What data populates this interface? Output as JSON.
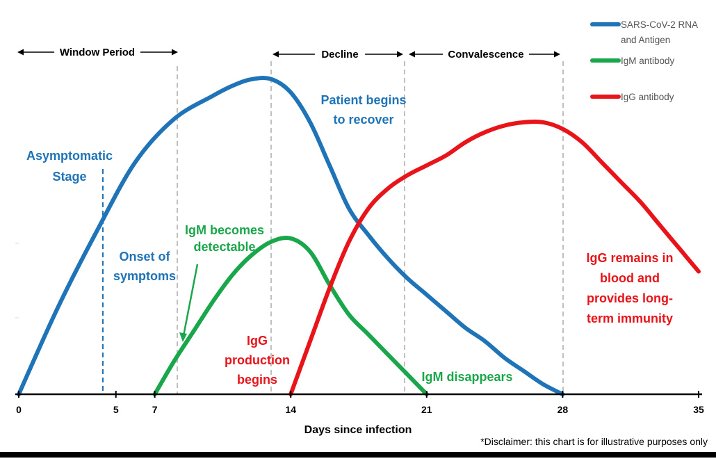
{
  "chart_data": {
    "type": "line",
    "title": "",
    "xlabel": "Days since infection",
    "ylabel": "",
    "xlim": [
      0,
      35
    ],
    "ylim": [
      0,
      100
    ],
    "x_ticks": [
      0,
      5,
      7,
      14,
      21,
      28,
      35
    ],
    "grid": false,
    "legend_position": "top-right",
    "series": [
      {
        "name": "SARS-CoV-2 RNA and Antigen",
        "name_lines": [
          "SARS-CoV-2 RNA",
          "and Antigen"
        ],
        "color": "#1f73b7",
        "points": [
          [
            0,
            0
          ],
          [
            2,
            26
          ],
          [
            4,
            49
          ],
          [
            6,
            70
          ],
          [
            8,
            83
          ],
          [
            10,
            90
          ],
          [
            11,
            93
          ],
          [
            12,
            95
          ],
          [
            13,
            95
          ],
          [
            14,
            91
          ],
          [
            15,
            82
          ],
          [
            16,
            69
          ],
          [
            17,
            56
          ],
          [
            18,
            48
          ],
          [
            19,
            41
          ],
          [
            20,
            35
          ],
          [
            21,
            30
          ],
          [
            22,
            25
          ],
          [
            23,
            20
          ],
          [
            24,
            16
          ],
          [
            25,
            11
          ],
          [
            26,
            7
          ],
          [
            27,
            3
          ],
          [
            28,
            0
          ]
        ]
      },
      {
        "name": "IgM antibody",
        "name_lines": [
          "IgM antibody"
        ],
        "color": "#1aa64a",
        "points": [
          [
            7,
            0
          ],
          [
            8,
            10
          ],
          [
            9,
            19
          ],
          [
            10,
            28
          ],
          [
            11,
            36
          ],
          [
            12,
            42
          ],
          [
            13,
            46
          ],
          [
            14,
            47
          ],
          [
            15,
            43
          ],
          [
            16,
            33
          ],
          [
            17,
            24
          ],
          [
            18,
            18
          ],
          [
            19,
            12
          ],
          [
            20,
            6
          ],
          [
            21,
            0
          ]
        ]
      },
      {
        "name": "IgG antibody",
        "name_lines": [
          "IgG antibody"
        ],
        "color": "#e8141a",
        "points": [
          [
            14,
            0
          ],
          [
            15,
            16
          ],
          [
            16,
            32
          ],
          [
            17,
            46
          ],
          [
            18,
            56
          ],
          [
            19,
            62
          ],
          [
            20,
            66
          ],
          [
            21,
            69
          ],
          [
            22,
            72
          ],
          [
            23,
            76
          ],
          [
            24,
            79
          ],
          [
            25,
            81
          ],
          [
            26,
            82
          ],
          [
            27,
            82
          ],
          [
            28,
            80
          ],
          [
            29,
            76
          ],
          [
            30,
            70
          ],
          [
            31,
            64
          ],
          [
            32,
            58
          ],
          [
            33,
            51
          ],
          [
            34,
            44
          ],
          [
            35,
            37
          ]
        ]
      }
    ],
    "annotations": [
      {
        "lines": [
          "Asymptomatic",
          "Stage"
        ],
        "color": "#1f73b7"
      },
      {
        "lines": [
          "Onset of",
          "symptoms"
        ],
        "color": "#1f73b7"
      },
      {
        "lines": [
          "Patient begins",
          "to recover"
        ],
        "color": "#1f73b7"
      },
      {
        "lines": [
          "IgM becomes",
          "detectable"
        ],
        "color": "#1aa64a"
      },
      {
        "lines": [
          "IgM disappears"
        ],
        "color": "#1aa64a"
      },
      {
        "lines": [
          "IgG",
          "production",
          "begins"
        ],
        "color": "#e8141a"
      },
      {
        "lines": [
          "IgG remains in",
          "blood and",
          "provides long-",
          "term immunity"
        ],
        "color": "#e8141a"
      }
    ],
    "periods": [
      {
        "label": "Window Period"
      },
      {
        "label": "Decline"
      },
      {
        "label": "Convalescence"
      }
    ],
    "disclaimer": "*Disclaimer: this chart is for illustrative purposes only"
  }
}
